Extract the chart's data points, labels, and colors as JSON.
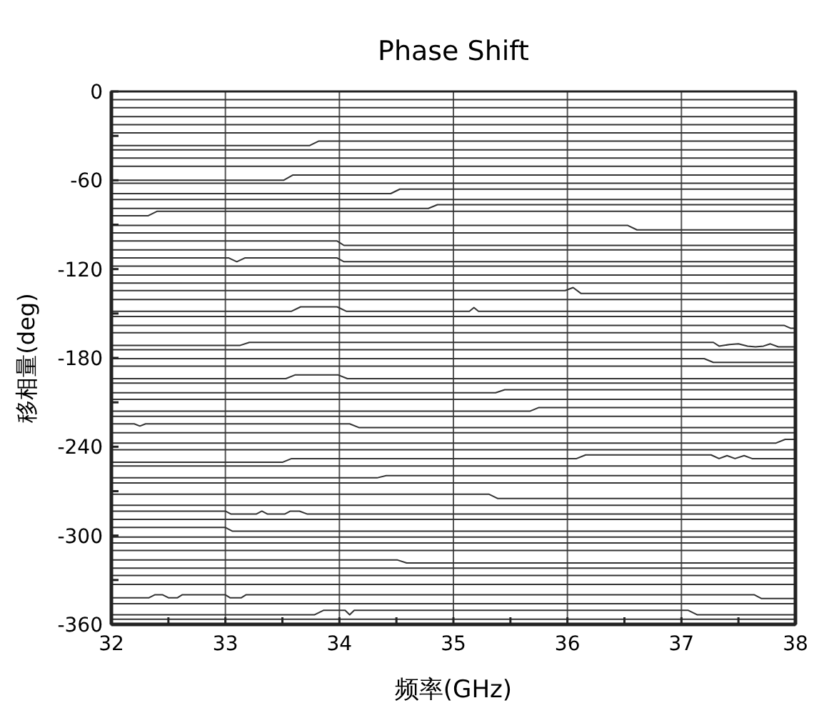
{
  "chart_data": {
    "type": "line",
    "title": "Phase Shift",
    "xlabel": "频率(GHz)",
    "ylabel": "移相量(deg)",
    "xlim": [
      32,
      38
    ],
    "ylim": [
      -360,
      0
    ],
    "xticks": [
      32,
      {
        "value": 32.5,
        "label": null
      },
      33,
      {
        "value": 33.5,
        "label": null
      },
      34,
      {
        "value": 34.5,
        "label": null
      },
      35,
      {
        "value": 35.5,
        "label": null
      },
      36,
      {
        "value": 36.5,
        "label": null
      },
      37,
      {
        "value": 37.5,
        "label": null
      },
      38
    ],
    "yticks": [
      -360,
      {
        "value": -330,
        "label": null
      },
      -300,
      {
        "value": -270,
        "label": null
      },
      -240,
      {
        "value": -210,
        "label": null
      },
      -180,
      {
        "value": -150,
        "label": null
      },
      -120,
      {
        "value": -90,
        "label": null
      },
      -60,
      {
        "value": -30,
        "label": null
      },
      0
    ],
    "grid": "x",
    "series": [
      {
        "color": "#333333",
        "x": [
          32,
          38
        ],
        "values": [
          -5.5,
          -5.5
        ]
      },
      {
        "color": "#333333",
        "x": [
          32,
          38
        ],
        "values": [
          -11,
          -11
        ]
      },
      {
        "color": "#333333",
        "x": [
          32,
          38
        ],
        "values": [
          -17,
          -17
        ]
      },
      {
        "color": "#333333",
        "x": [
          32,
          38
        ],
        "values": [
          -22.5,
          -22.5
        ]
      },
      {
        "color": "#333333",
        "x": [
          32,
          38
        ],
        "values": [
          -28,
          -28
        ]
      },
      {
        "color": "#333333",
        "x": [
          32,
          33.74,
          33.82,
          38
        ],
        "values": [
          -36.5,
          -36.5,
          -33.5,
          -33.5
        ]
      },
      {
        "color": "#333333",
        "x": [
          32,
          38
        ],
        "values": [
          -39.5,
          -39.5
        ]
      },
      {
        "color": "#333333",
        "x": [
          32,
          38
        ],
        "values": [
          -45,
          -45
        ]
      },
      {
        "color": "#333333",
        "x": [
          32,
          38
        ],
        "values": [
          -50.5,
          -50.5
        ]
      },
      {
        "color": "#333333",
        "x": [
          32,
          33.51,
          33.59,
          38
        ],
        "values": [
          -60,
          -60,
          -56.5,
          -56.5
        ]
      },
      {
        "color": "#333333",
        "x": [
          32,
          38
        ],
        "values": [
          -62,
          -62
        ]
      },
      {
        "color": "#333333",
        "x": [
          32,
          34.45,
          34.53,
          38
        ],
        "values": [
          -69,
          -69,
          -66,
          -66
        ]
      },
      {
        "color": "#333333",
        "x": [
          32,
          38
        ],
        "values": [
          -73,
          -73
        ]
      },
      {
        "color": "#333333",
        "x": [
          32,
          34.78,
          34.86,
          38
        ],
        "values": [
          -79,
          -79,
          -76.5,
          -76.5
        ]
      },
      {
        "color": "#333333",
        "x": [
          32,
          32.32,
          32.4,
          38
        ],
        "values": [
          -84,
          -84,
          -81,
          -81
        ]
      },
      {
        "color": "#333333",
        "x": [
          32,
          36.53,
          36.61,
          38
        ],
        "values": [
          -90.5,
          -90.5,
          -93.5,
          -93.5
        ]
      },
      {
        "color": "#333333",
        "x": [
          32,
          38
        ],
        "values": [
          -95.5,
          -95.5
        ]
      },
      {
        "color": "#333333",
        "x": [
          32,
          33.98,
          34.04,
          38
        ],
        "values": [
          -101,
          -101,
          -104,
          -104
        ]
      },
      {
        "color": "#333333",
        "x": [
          32,
          38
        ],
        "values": [
          -107,
          -107
        ]
      },
      {
        "color": "#333333",
        "x": [
          32,
          33.03,
          33.1,
          33.17,
          33.98,
          34.04,
          38
        ],
        "values": [
          -112.5,
          -112.5,
          -115,
          -112.5,
          -112.5,
          -115,
          -115
        ]
      },
      {
        "color": "#333333",
        "x": [
          32,
          38
        ],
        "values": [
          -118,
          -118
        ]
      },
      {
        "color": "#333333",
        "x": [
          32,
          38
        ],
        "values": [
          -124,
          -124
        ]
      },
      {
        "color": "#333333",
        "x": [
          32,
          38
        ],
        "values": [
          -129.5,
          -129.5
        ]
      },
      {
        "color": "#333333",
        "x": [
          32,
          35.98,
          36.05,
          36.12,
          38
        ],
        "values": [
          -134.5,
          -134.5,
          -132.5,
          -136.5,
          -136.5
        ]
      },
      {
        "color": "#333333",
        "x": [
          32,
          38
        ],
        "values": [
          -140.5,
          -140.5
        ]
      },
      {
        "color": "#333333",
        "x": [
          32,
          33.58,
          33.66,
          33.98,
          34.06,
          35.14,
          35.18,
          35.22,
          38
        ],
        "values": [
          -148.5,
          -148.5,
          -145.5,
          -145.5,
          -148.5,
          -148.5,
          -146,
          -148.5,
          -148.5
        ]
      },
      {
        "color": "#333333",
        "x": [
          32,
          38
        ],
        "values": [
          -152,
          -152
        ]
      },
      {
        "color": "#333333",
        "x": [
          32,
          37.9,
          37.96,
          38
        ],
        "values": [
          -158,
          -158,
          -160,
          -160
        ]
      },
      {
        "color": "#333333",
        "x": [
          32,
          38
        ],
        "values": [
          -163,
          -163
        ]
      },
      {
        "color": "#333333",
        "x": [
          32,
          33.13,
          33.21,
          37.28,
          37.33,
          37.42,
          37.5,
          37.58,
          37.65,
          37.72,
          37.78,
          37.85,
          38
        ],
        "values": [
          -171.5,
          -171.5,
          -169.5,
          -169.5,
          -172,
          -171,
          -170.5,
          -172,
          -172.5,
          -172,
          -170.5,
          -172.5,
          -172.5
        ]
      },
      {
        "color": "#333333",
        "x": [
          32,
          38
        ],
        "values": [
          -174.5,
          -174.5
        ]
      },
      {
        "color": "#333333",
        "x": [
          32,
          37.2,
          37.28,
          38
        ],
        "values": [
          -180.5,
          -180.5,
          -183,
          -183
        ]
      },
      {
        "color": "#333333",
        "x": [
          32,
          38
        ],
        "values": [
          -185.5,
          -185.5
        ]
      },
      {
        "color": "#333333",
        "x": [
          32,
          33.53,
          33.61,
          33.99,
          34.07,
          38
        ],
        "values": [
          -194,
          -194,
          -191.5,
          -191.5,
          -194,
          -194
        ]
      },
      {
        "color": "#333333",
        "x": [
          32,
          38
        ],
        "values": [
          -197,
          -197
        ]
      },
      {
        "color": "#333333",
        "x": [
          32,
          35.37,
          35.45,
          38
        ],
        "values": [
          -203.5,
          -203.5,
          -201.5,
          -201.5
        ]
      },
      {
        "color": "#333333",
        "x": [
          32,
          38
        ],
        "values": [
          -208,
          -208
        ]
      },
      {
        "color": "#333333",
        "x": [
          32,
          35.67,
          35.75,
          38
        ],
        "values": [
          -216,
          -216,
          -213.5,
          -213.5
        ]
      },
      {
        "color": "#333333",
        "x": [
          32,
          38
        ],
        "values": [
          -219.5,
          -219.5
        ]
      },
      {
        "color": "#333333",
        "x": [
          32,
          32.2,
          32.25,
          32.3,
          34.09,
          34.17,
          38
        ],
        "values": [
          -224.5,
          -224.5,
          -226,
          -224.5,
          -224.5,
          -227,
          -227
        ]
      },
      {
        "color": "#333333",
        "x": [
          32,
          38
        ],
        "values": [
          -230.5,
          -230.5
        ]
      },
      {
        "color": "#333333",
        "x": [
          32,
          37.83,
          37.91,
          38
        ],
        "values": [
          -237.5,
          -237.5,
          -235,
          -235
        ]
      },
      {
        "color": "#333333",
        "x": [
          32,
          38
        ],
        "values": [
          -242,
          -242
        ]
      },
      {
        "color": "#333333",
        "x": [
          32,
          33.5,
          33.58,
          36.08,
          36.16,
          37.26,
          37.33,
          37.4,
          37.47,
          37.55,
          37.62,
          38
        ],
        "values": [
          -250.5,
          -250.5,
          -248,
          -248,
          -245.5,
          -245.5,
          -248,
          -246,
          -248,
          -246,
          -248,
          -248
        ]
      },
      {
        "color": "#333333",
        "x": [
          32,
          38
        ],
        "values": [
          -253,
          -253
        ]
      },
      {
        "color": "#333333",
        "x": [
          32,
          34.33,
          34.41,
          38
        ],
        "values": [
          -261,
          -261,
          -259.5,
          -259.5
        ]
      },
      {
        "color": "#333333",
        "x": [
          32,
          38
        ],
        "values": [
          -264.5,
          -264.5
        ]
      },
      {
        "color": "#333333",
        "x": [
          32,
          35.31,
          35.39,
          38
        ],
        "values": [
          -272,
          -272,
          -275,
          -275
        ]
      },
      {
        "color": "#333333",
        "x": [
          32,
          38
        ],
        "values": [
          -279.5,
          -279.5
        ]
      },
      {
        "color": "#333333",
        "x": [
          32,
          33.0,
          33.05,
          33.27,
          33.32,
          33.37,
          33.52,
          33.57,
          33.65,
          33.72,
          38
        ],
        "values": [
          -283.5,
          -283.5,
          -285.5,
          -285.5,
          -283.5,
          -285.5,
          -285.5,
          -283.5,
          -283.5,
          -285.5,
          -285.5
        ]
      },
      {
        "color": "#333333",
        "x": [
          32,
          38
        ],
        "values": [
          -289,
          -289
        ]
      },
      {
        "color": "#333333",
        "x": [
          32,
          33.0,
          33.06,
          38
        ],
        "values": [
          -294.5,
          -294.5,
          -297,
          -297
        ]
      },
      {
        "color": "#333333",
        "x": [
          32,
          38
        ],
        "values": [
          -301,
          -301
        ]
      },
      {
        "color": "#333333",
        "x": [
          32,
          38
        ],
        "values": [
          -305,
          -305
        ]
      },
      {
        "color": "#333333",
        "x": [
          32,
          38
        ],
        "values": [
          -310,
          -310
        ]
      },
      {
        "color": "#333333",
        "x": [
          32,
          34.51,
          34.59,
          38
        ],
        "values": [
          -316.5,
          -316.5,
          -318.5,
          -318.5
        ]
      },
      {
        "color": "#333333",
        "x": [
          32,
          38
        ],
        "values": [
          -322,
          -322
        ]
      },
      {
        "color": "#333333",
        "x": [
          32,
          38
        ],
        "values": [
          -327,
          -327
        ]
      },
      {
        "color": "#333333",
        "x": [
          32,
          38
        ],
        "values": [
          -333,
          -333
        ]
      },
      {
        "color": "#333333",
        "x": [
          32,
          32.33,
          32.38,
          32.45,
          32.5,
          32.58,
          32.62,
          33.0,
          33.04,
          33.14,
          33.18,
          37.64,
          37.7,
          38
        ],
        "values": [
          -342,
          -342,
          -340,
          -340,
          -342,
          -342,
          -340,
          -340,
          -342,
          -342,
          -340,
          -340,
          -342.5,
          -342.5
        ]
      },
      {
        "color": "#333333",
        "x": [
          32,
          38
        ],
        "values": [
          -346,
          -346
        ]
      },
      {
        "color": "#333333",
        "x": [
          32,
          33.78,
          33.86,
          34.05,
          34.09,
          34.13,
          37.06,
          37.14,
          38
        ],
        "values": [
          -353.5,
          -353.5,
          -350.5,
          -350.5,
          -353.5,
          -350.5,
          -350.5,
          -353.5,
          -353.5
        ]
      },
      {
        "color": "#333333",
        "x": [
          32,
          38
        ],
        "values": [
          -356.5,
          -356.5
        ]
      }
    ]
  }
}
